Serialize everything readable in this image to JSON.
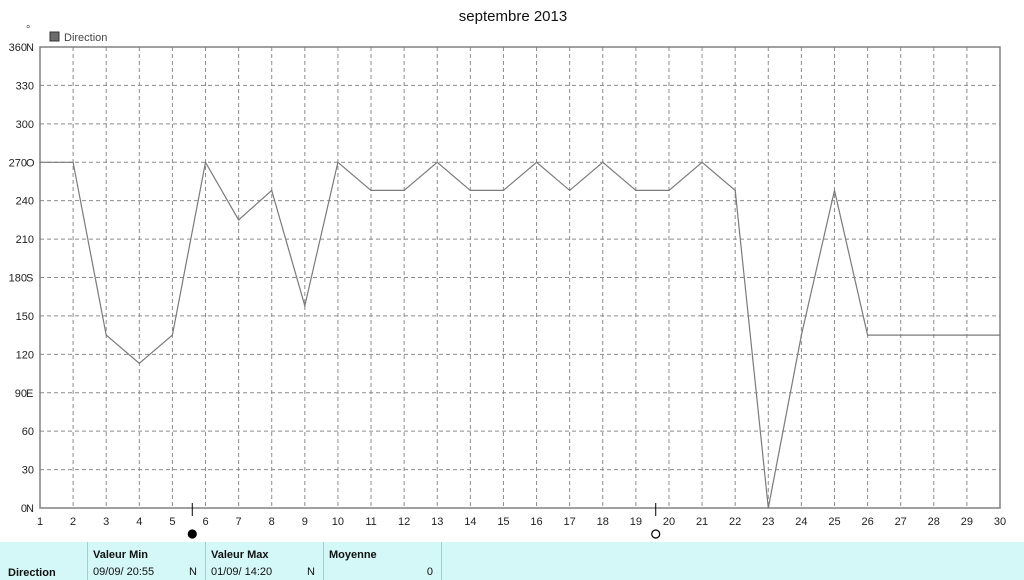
{
  "chart_data": {
    "type": "line",
    "title": "septembre 2013",
    "ylabel": "°",
    "ylim": [
      0,
      360
    ],
    "y_ticks": [
      {
        "value": 0,
        "label": "0",
        "dir": "N"
      },
      {
        "value": 30,
        "label": "30",
        "dir": ""
      },
      {
        "value": 60,
        "label": "60",
        "dir": ""
      },
      {
        "value": 90,
        "label": "90",
        "dir": "E"
      },
      {
        "value": 120,
        "label": "120",
        "dir": ""
      },
      {
        "value": 150,
        "label": "150",
        "dir": ""
      },
      {
        "value": 180,
        "label": "180",
        "dir": "S"
      },
      {
        "value": 210,
        "label": "210",
        "dir": ""
      },
      {
        "value": 240,
        "label": "240",
        "dir": ""
      },
      {
        "value": 270,
        "label": "270",
        "dir": "O"
      },
      {
        "value": 300,
        "label": "300",
        "dir": ""
      },
      {
        "value": 330,
        "label": "330",
        "dir": ""
      },
      {
        "value": 360,
        "label": "360",
        "dir": "N"
      }
    ],
    "xlim": [
      1,
      30
    ],
    "x_ticks": [
      "1",
      "2",
      "3",
      "4",
      "5",
      "6",
      "7",
      "8",
      "9",
      "10",
      "11",
      "12",
      "13",
      "14",
      "15",
      "16",
      "17",
      "18",
      "19",
      "20",
      "21",
      "22",
      "23",
      "24",
      "25",
      "26",
      "27",
      "28",
      "29",
      "30"
    ],
    "grid": true,
    "legend_position": "top-left",
    "series": [
      {
        "name": "Direction",
        "color": "#7a7a7a",
        "x": [
          1,
          2,
          3,
          4,
          5,
          6,
          7,
          8,
          9,
          10,
          11,
          12,
          13,
          14,
          15,
          16,
          17,
          18,
          19,
          20,
          21,
          22,
          23,
          24,
          25,
          26,
          27,
          28,
          29,
          30
        ],
        "values": [
          270,
          270,
          135,
          113,
          135,
          270,
          225,
          248,
          158,
          270,
          248,
          248,
          270,
          248,
          248,
          270,
          248,
          270,
          248,
          248,
          270,
          248,
          0,
          135,
          248,
          135,
          135,
          135,
          135,
          135
        ]
      }
    ],
    "moon_phases": [
      {
        "x": 5.6,
        "phase": "new-moon"
      },
      {
        "x": 19.6,
        "phase": "full-moon"
      }
    ]
  },
  "stats": {
    "row_label": "Direction",
    "min": {
      "header": "Valeur Min",
      "value": "09/09/  20:55",
      "dir": "N"
    },
    "max": {
      "header": "Valeur Max",
      "value": "01/09/  14:20",
      "dir": "N"
    },
    "avg": {
      "header": "Moyenne",
      "value": "0"
    }
  }
}
